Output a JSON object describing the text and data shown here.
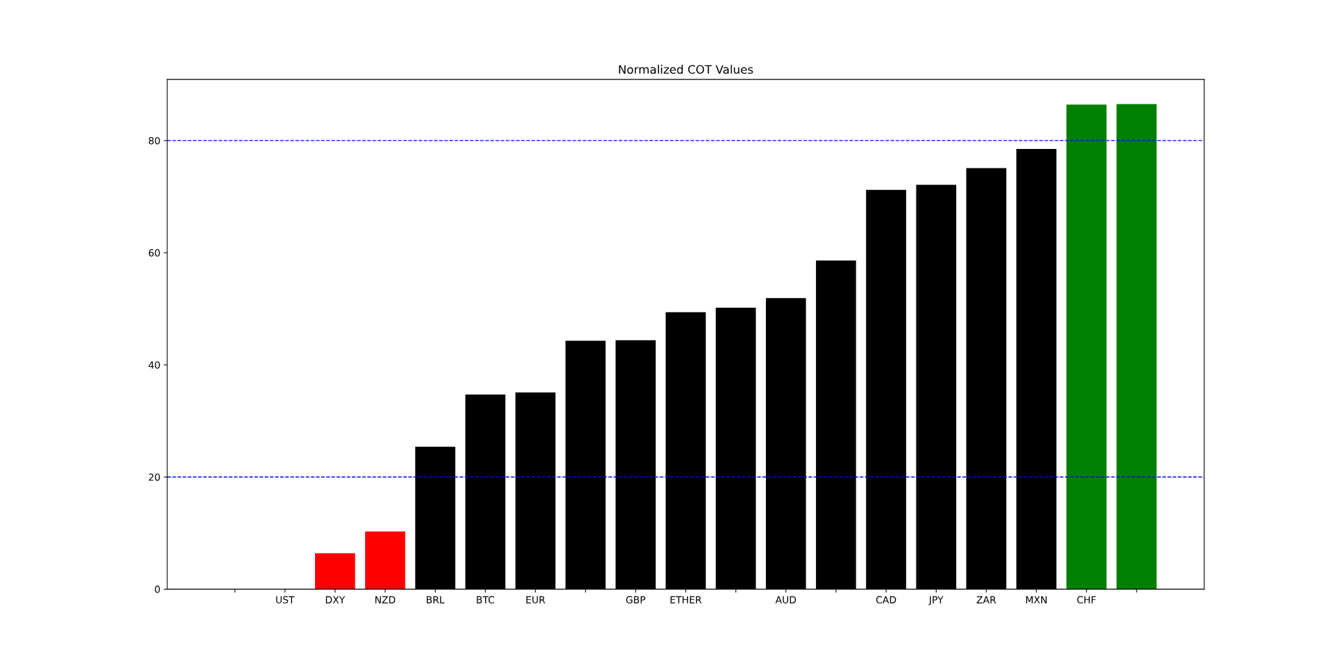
{
  "chart_data": {
    "type": "bar",
    "title": "Normalized COT Values",
    "categories": [
      null,
      "UST",
      "DXY",
      "NZD",
      "BRL",
      "BTC",
      "EUR",
      null,
      "GBP",
      "ETHER",
      null,
      "AUD",
      null,
      "CAD",
      "JPY",
      "ZAR",
      "MXN",
      "CHF",
      null
    ],
    "values": [
      0,
      0,
      6.4,
      10.3,
      25.4,
      34.7,
      35.1,
      44.3,
      44.4,
      49.4,
      50.2,
      51.9,
      58.6,
      71.2,
      72.1,
      75.1,
      78.5,
      86.4,
      86.5
    ],
    "colors": [
      "#ff0000",
      "#ff0000",
      "#ff0000",
      "#ff0000",
      "#000000",
      "#000000",
      "#000000",
      "#000000",
      "#000000",
      "#000000",
      "#000000",
      "#000000",
      "#000000",
      "#000000",
      "#000000",
      "#000000",
      "#000000",
      "#008000",
      "#008000"
    ],
    "ylim": [
      0,
      90.9
    ],
    "yticks": [
      0,
      20,
      40,
      60,
      80
    ],
    "ref_lines": [
      {
        "axis": "y",
        "value": 80,
        "color": "#0000ff",
        "line_style": "dashed"
      },
      {
        "axis": "y",
        "value": 20,
        "color": "#0000ff",
        "line_style": "dashed"
      }
    ],
    "grid": false,
    "legend": false
  }
}
